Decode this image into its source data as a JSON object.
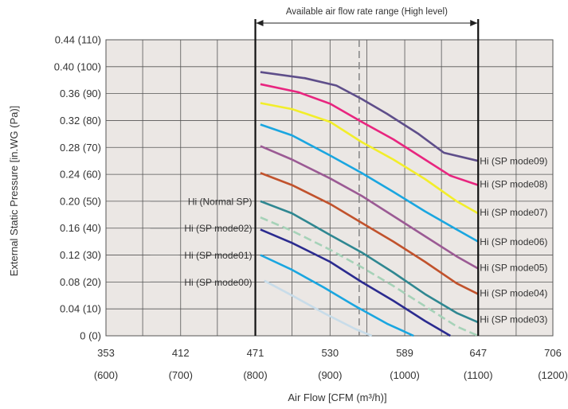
{
  "chart_data": {
    "type": "line",
    "title": "",
    "range_annotation": "Available air flow rate range (High level)",
    "xlabel": "Air Flow [CFM (m³/h)]",
    "ylabel": "External Static Pressure [in.WG (Pa)]",
    "xlim": [
      353,
      706
    ],
    "ylim": [
      0,
      0.44
    ],
    "x_ticks": [
      {
        "value": 353,
        "cfm": "353",
        "m3h": "(600)"
      },
      {
        "value": 412,
        "cfm": "412",
        "m3h": "(700)"
      },
      {
        "value": 471,
        "cfm": "471",
        "m3h": "(800)"
      },
      {
        "value": 530,
        "cfm": "530",
        "m3h": "(900)"
      },
      {
        "value": 589,
        "cfm": "589",
        "m3h": "(1000)"
      },
      {
        "value": 647,
        "cfm": "647",
        "m3h": "(1100)"
      },
      {
        "value": 706,
        "cfm": "706",
        "m3h": "(1200)"
      }
    ],
    "y_ticks": [
      {
        "value": 0.0,
        "label": "0 (0)"
      },
      {
        "value": 0.04,
        "label": "0.04 (10)"
      },
      {
        "value": 0.08,
        "label": "0.08 (20)"
      },
      {
        "value": 0.12,
        "label": "0.12 (30)"
      },
      {
        "value": 0.16,
        "label": "0.16 (40)"
      },
      {
        "value": 0.2,
        "label": "0.20 (50)"
      },
      {
        "value": 0.24,
        "label": "0.24 (60)"
      },
      {
        "value": 0.28,
        "label": "0.28 (70)"
      },
      {
        "value": 0.32,
        "label": "0.32 (80)"
      },
      {
        "value": 0.36,
        "label": "0.36 (90)"
      },
      {
        "value": 0.4,
        "label": "0.40 (100)"
      },
      {
        "value": 0.44,
        "label": "0.44 (110)"
      }
    ],
    "x_gridlines": [
      353,
      382,
      412,
      441,
      471,
      500,
      530,
      559,
      589,
      618,
      647,
      677,
      706
    ],
    "y_gridlines": [
      0,
      0.04,
      0.08,
      0.12,
      0.16,
      0.2,
      0.24,
      0.28,
      0.32,
      0.36,
      0.4,
      0.44
    ],
    "range_bounds": [
      471,
      647
    ],
    "dashed_marker_x": 553,
    "grid": true,
    "background": "#ebe7e4",
    "series": [
      {
        "name": "Hi (SP mode09)",
        "label_side": "right",
        "color": "#5e4e8a",
        "dashed": false,
        "x": [
          475,
          510,
          535,
          555,
          575,
          600,
          620,
          647
        ],
        "y": [
          0.392,
          0.383,
          0.372,
          0.352,
          0.33,
          0.3,
          0.272,
          0.26
        ]
      },
      {
        "name": "Hi (SP mode08)",
        "label_side": "right",
        "color": "#e8257f",
        "dashed": false,
        "x": [
          475,
          505,
          530,
          555,
          580,
          605,
          625,
          647
        ],
        "y": [
          0.374,
          0.362,
          0.345,
          0.318,
          0.292,
          0.262,
          0.238,
          0.224
        ]
      },
      {
        "name": "Hi (SP mode07)",
        "label_side": "right",
        "color": "#f2ee2a",
        "dashed": false,
        "x": [
          475,
          500,
          530,
          555,
          580,
          605,
          630,
          647
        ],
        "y": [
          0.346,
          0.337,
          0.318,
          0.288,
          0.262,
          0.233,
          0.2,
          0.182
        ]
      },
      {
        "name": "Hi (SP mode06)",
        "label_side": "right",
        "color": "#1aa6e0",
        "dashed": false,
        "x": [
          475,
          500,
          530,
          555,
          580,
          605,
          630,
          647
        ],
        "y": [
          0.314,
          0.298,
          0.268,
          0.242,
          0.214,
          0.185,
          0.158,
          0.14
        ]
      },
      {
        "name": "Hi (SP mode05)",
        "label_side": "right",
        "color": "#9b5a94",
        "dashed": false,
        "x": [
          475,
          500,
          530,
          555,
          580,
          605,
          630,
          647
        ],
        "y": [
          0.282,
          0.262,
          0.234,
          0.208,
          0.178,
          0.148,
          0.118,
          0.1
        ]
      },
      {
        "name": "Hi (SP mode04)",
        "label_side": "right",
        "color": "#c1522c",
        "dashed": false,
        "x": [
          475,
          500,
          530,
          555,
          580,
          605,
          630,
          647
        ],
        "y": [
          0.242,
          0.224,
          0.196,
          0.168,
          0.14,
          0.11,
          0.078,
          0.062
        ]
      },
      {
        "name": "Hi (Normal SP)",
        "label_side": "left",
        "color": "#2f8791",
        "dashed": false,
        "x": [
          475,
          500,
          530,
          555,
          580,
          605,
          630,
          647
        ],
        "y": [
          0.2,
          0.182,
          0.15,
          0.124,
          0.094,
          0.062,
          0.034,
          0.02
        ]
      },
      {
        "name": "Hi (SP mode02)",
        "label_side": "left",
        "color": "#a6d2b8",
        "dashed": true,
        "x": [
          475,
          500,
          530,
          555,
          580,
          605,
          630,
          647
        ],
        "y": [
          0.176,
          0.156,
          0.128,
          0.102,
          0.074,
          0.044,
          0.014,
          0.0
        ]
      },
      {
        "name": "Hi (SP mode03)",
        "label_side": "right",
        "color": "#2f8791",
        "dashed": false,
        "x": [],
        "y": []
      },
      {
        "name": "Hi (SP mode01)",
        "label_side": "left",
        "color": "#2b2b8f",
        "dashed": false,
        "x": [
          475,
          500,
          530,
          555,
          580,
          605,
          625
        ],
        "y": [
          0.158,
          0.138,
          0.11,
          0.08,
          0.052,
          0.022,
          0.0
        ]
      },
      {
        "name": "Hi (SP mode00)",
        "label_side": "left",
        "color": "#1aa6e0",
        "dashed": false,
        "x": [
          475,
          500,
          525,
          550,
          575,
          596
        ],
        "y": [
          0.12,
          0.098,
          0.072,
          0.044,
          0.018,
          0.0
        ]
      },
      {
        "name": "",
        "label_side": "none",
        "color": "#c8dce9",
        "dashed": false,
        "x": [
          478,
          500,
          525,
          550,
          563
        ],
        "y": [
          0.082,
          0.06,
          0.034,
          0.01,
          0.0
        ]
      }
    ]
  }
}
